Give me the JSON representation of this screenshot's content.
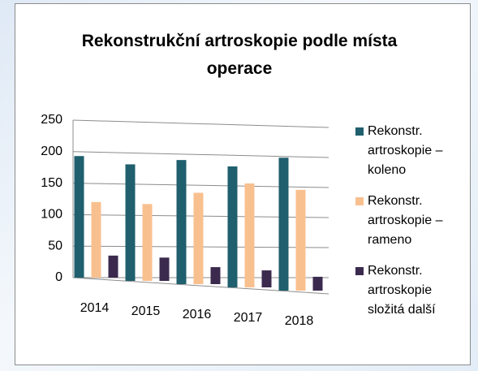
{
  "chart_data": {
    "type": "bar",
    "title": "Rekonstrukční artroskopie podle místa operace",
    "categories": [
      "2014",
      "2015",
      "2016",
      "2017",
      "2018"
    ],
    "series": [
      {
        "name": "Rekonstr. artroskopie – koleno",
        "color": "#1f5f6e",
        "values": [
          193,
          185,
          197,
          192,
          211
        ]
      },
      {
        "name": "Rekonstr. artroskopie – rameno",
        "color": "#f9c08f",
        "values": [
          120,
          122,
          145,
          165,
          160
        ]
      },
      {
        "name": "Rekonstr. artroskopie složitá další",
        "color": "#3b2a4e",
        "values": [
          35,
          37,
          27,
          27,
          22
        ]
      }
    ],
    "ylim": [
      0,
      250
    ],
    "yticks": [
      0,
      50,
      100,
      150,
      200,
      250
    ],
    "grid": true,
    "legend": "right"
  }
}
